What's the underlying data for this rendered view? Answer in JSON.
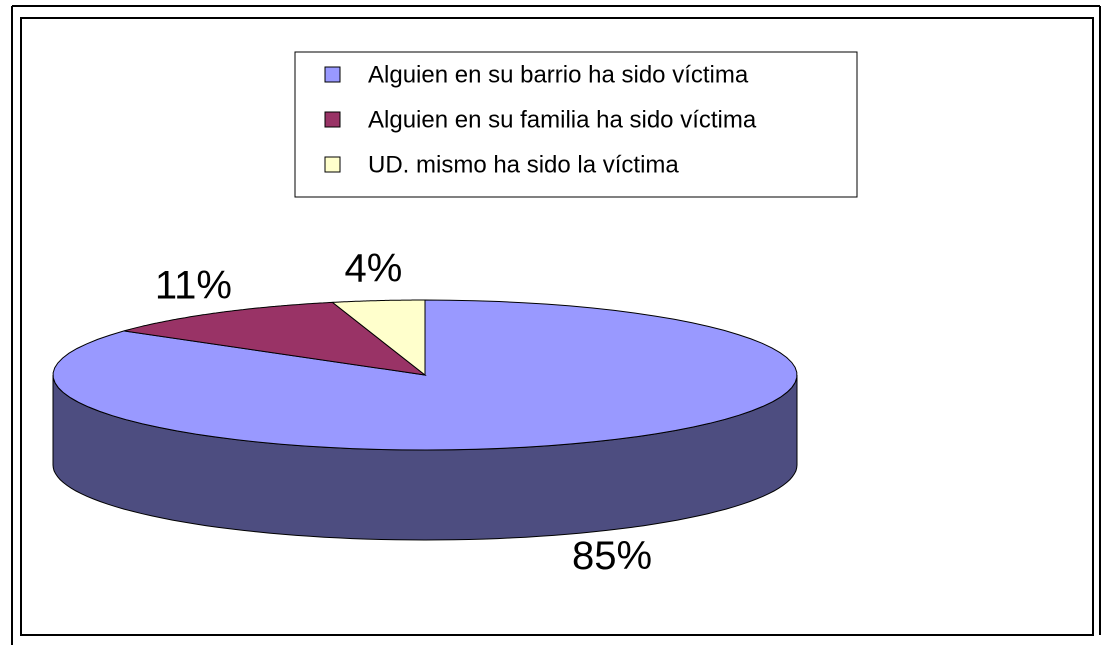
{
  "chart_data": {
    "type": "pie",
    "categories": [
      "Alguien en su barrio  ha sido víctima",
      "Alguien en su familia ha sido víctima",
      "UD. mismo ha sido la víctima"
    ],
    "values": [
      85,
      11,
      4
    ],
    "value_labels": [
      "85%",
      "11%",
      "4%"
    ],
    "colors": [
      "#9999ff",
      "#993366",
      "#ffffcc"
    ],
    "legend": "top"
  }
}
